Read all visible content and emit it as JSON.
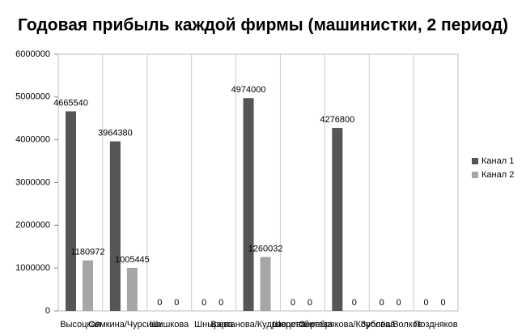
{
  "chart_data": {
    "type": "bar",
    "title": "Годовая прибыль каждой фирмы (машинистки, 2 период)",
    "categories": [
      "Высоцкая",
      "Сёмкина/Чурсина",
      "Шишкова",
      "Шнырева",
      "Вартанова/Кудрявцева",
      "Шерстобитова",
      "Серебрякова/Королёва",
      "Зубова/Волков",
      "Поздняков"
    ],
    "series": [
      {
        "name": "Канал 1",
        "color": "#555555",
        "values": [
          4665540,
          3964380,
          0,
          0,
          4974000,
          0,
          4276800,
          0,
          0
        ]
      },
      {
        "name": "Канал 2",
        "color": "#a6a6a6",
        "values": [
          1180972,
          1005445,
          0,
          0,
          1260032,
          0,
          0,
          0,
          0
        ]
      }
    ],
    "ylim": [
      0,
      6000000
    ],
    "yticks": [
      0,
      1000000,
      2000000,
      3000000,
      4000000,
      5000000,
      6000000
    ],
    "legend": "right"
  }
}
